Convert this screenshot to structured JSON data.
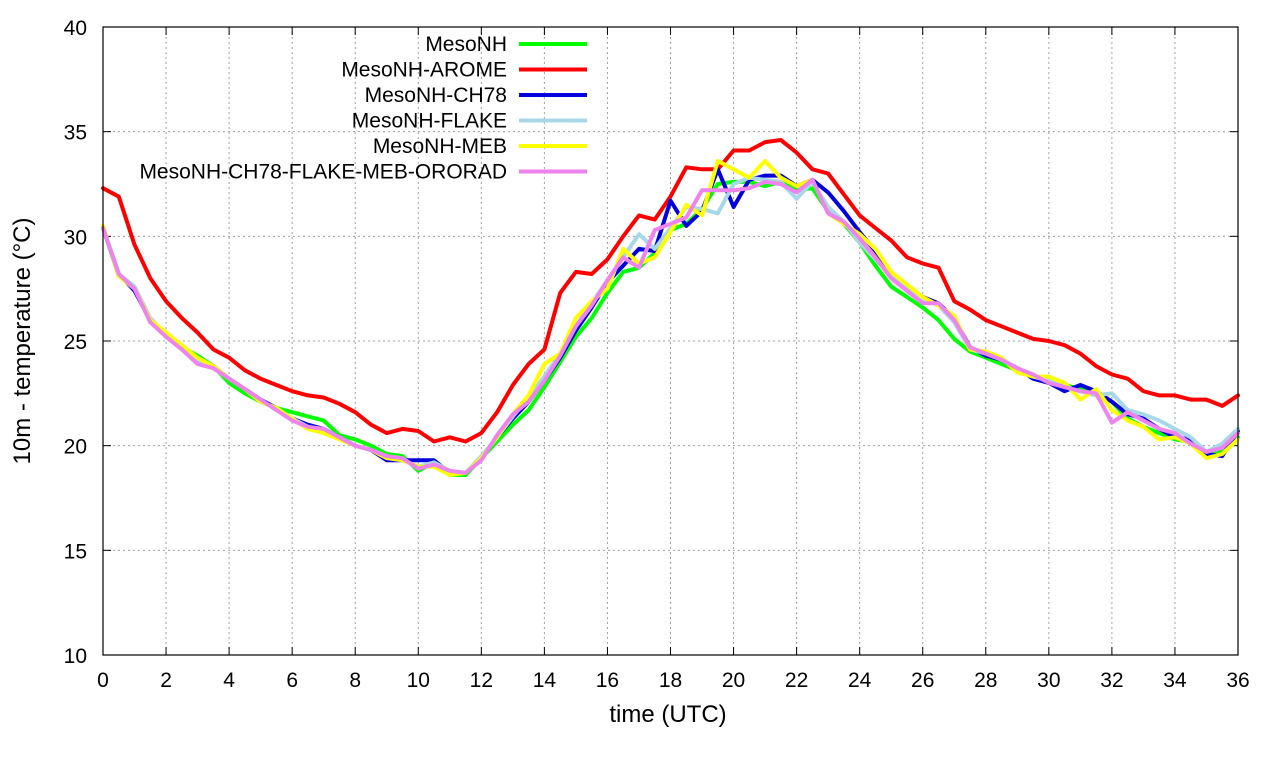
{
  "chart_data": {
    "type": "line",
    "title": "",
    "xlabel": "time (UTC)",
    "ylabel": "10m - temperature (°C)",
    "xlim": [
      0,
      36
    ],
    "ylim": [
      10,
      40
    ],
    "xticks": [
      "0",
      "2",
      "4",
      "6",
      "8",
      "10",
      "12",
      "14",
      "16",
      "18",
      "20",
      "22",
      "24",
      "26",
      "28",
      "30",
      "32",
      "34",
      "36"
    ],
    "yticks": [
      "10",
      "15",
      "20",
      "25",
      "30",
      "35",
      "40"
    ],
    "grid": true,
    "legend_position": "top-left",
    "x": [
      0,
      0.5,
      1,
      1.5,
      2,
      2.5,
      3,
      3.5,
      4,
      4.5,
      5,
      5.5,
      6,
      6.5,
      7,
      7.5,
      8,
      8.5,
      9,
      9.5,
      10,
      10.5,
      11,
      11.5,
      12,
      12.5,
      13,
      13.5,
      14,
      14.5,
      15,
      15.5,
      16,
      16.5,
      17,
      17.5,
      18,
      18.5,
      19,
      19.5,
      20,
      20.5,
      21,
      21.5,
      22,
      22.5,
      23,
      23.5,
      24,
      24.5,
      25,
      25.5,
      26,
      26.5,
      27,
      27.5,
      28,
      28.5,
      29,
      29.5,
      30,
      30.5,
      31,
      31.5,
      32,
      32.5,
      33,
      33.5,
      34,
      34.5,
      35,
      35.5,
      36
    ],
    "series": [
      {
        "name": "MesoNH",
        "color": "#00ff00",
        "values": [
          30.4,
          28.1,
          27.5,
          25.9,
          25.3,
          24.7,
          24.3,
          23.8,
          23.0,
          22.5,
          22.1,
          21.8,
          21.6,
          21.4,
          21.2,
          20.5,
          20.3,
          20.0,
          19.6,
          19.5,
          18.8,
          19.2,
          18.6,
          18.6,
          19.4,
          20.2,
          21.0,
          21.7,
          22.8,
          24.0,
          25.2,
          26.1,
          27.3,
          28.3,
          28.5,
          29.2,
          30.3,
          30.6,
          31.3,
          32.5,
          32.6,
          32.6,
          32.4,
          32.6,
          32.2,
          32.3,
          31.2,
          30.6,
          29.7,
          28.6,
          27.6,
          27.1,
          26.6,
          26.0,
          25.1,
          24.5,
          24.2,
          23.9,
          23.6,
          23.3,
          23.1,
          22.9,
          22.7,
          22.5,
          22.1,
          21.3,
          20.9,
          20.6,
          20.3,
          20.2,
          19.7,
          19.7,
          20.4
        ]
      },
      {
        "name": "MesoNH-AROME",
        "color": "#ff0000",
        "values": [
          32.3,
          31.9,
          29.6,
          28.0,
          26.9,
          26.1,
          25.4,
          24.6,
          24.2,
          23.6,
          23.2,
          22.9,
          22.6,
          22.4,
          22.3,
          22.0,
          21.6,
          21.0,
          20.6,
          20.8,
          20.7,
          20.2,
          20.4,
          20.2,
          20.6,
          21.6,
          22.9,
          23.9,
          24.6,
          27.3,
          28.3,
          28.2,
          28.9,
          30.0,
          31.0,
          30.8,
          31.9,
          33.3,
          33.2,
          33.2,
          34.1,
          34.1,
          34.5,
          34.6,
          34.0,
          33.2,
          33.0,
          32.0,
          31.0,
          30.4,
          29.8,
          29.0,
          28.7,
          28.5,
          26.9,
          26.5,
          26.0,
          25.7,
          25.4,
          25.1,
          25.0,
          24.8,
          24.4,
          23.8,
          23.4,
          23.2,
          22.6,
          22.4,
          22.4,
          22.2,
          22.2,
          21.9,
          22.4
        ]
      },
      {
        "name": "MesoNH-CH78",
        "color": "#0000dd",
        "values": [
          30.4,
          28.2,
          27.4,
          26.0,
          25.3,
          24.7,
          24.1,
          23.8,
          23.2,
          22.7,
          22.2,
          21.8,
          21.3,
          21.0,
          20.8,
          20.4,
          20.0,
          19.8,
          19.3,
          19.3,
          19.3,
          19.3,
          18.7,
          18.7,
          19.4,
          20.4,
          21.3,
          22.1,
          23.1,
          24.2,
          25.5,
          26.6,
          27.8,
          28.6,
          29.4,
          29.3,
          31.7,
          30.5,
          31.2,
          33.2,
          31.4,
          32.7,
          32.9,
          32.9,
          32.4,
          32.7,
          32.1,
          31.2,
          30.2,
          29.3,
          28.2,
          27.5,
          27.1,
          26.8,
          26.1,
          24.7,
          24.3,
          24.1,
          23.7,
          23.2,
          23.0,
          22.6,
          22.9,
          22.6,
          22.1,
          21.5,
          21.3,
          20.8,
          20.4,
          20.3,
          19.6,
          19.5,
          20.7
        ]
      },
      {
        "name": "MesoNH-FLAKE",
        "color": "#a8d8e8",
        "values": [
          30.4,
          28.2,
          27.6,
          26.1,
          25.3,
          24.6,
          24.0,
          23.7,
          23.2,
          22.7,
          22.1,
          21.8,
          21.3,
          20.9,
          20.7,
          20.4,
          20.0,
          19.8,
          19.5,
          19.3,
          19.0,
          19.2,
          18.8,
          18.7,
          19.5,
          20.4,
          21.4,
          22.3,
          23.3,
          24.4,
          25.7,
          26.8,
          27.9,
          29.0,
          30.1,
          29.4,
          30.4,
          31.4,
          31.3,
          31.1,
          32.5,
          32.8,
          32.7,
          32.6,
          31.8,
          32.6,
          31.4,
          30.7,
          29.7,
          28.9,
          28.1,
          27.5,
          27.0,
          26.7,
          25.9,
          24.6,
          24.4,
          24.1,
          23.7,
          23.3,
          23.1,
          22.8,
          22.6,
          22.4,
          22.5,
          21.7,
          21.5,
          21.2,
          20.8,
          20.4,
          19.7,
          20.1,
          20.8
        ]
      },
      {
        "name": "MesoNH-MEB",
        "color": "#ffff00",
        "values": [
          30.5,
          28.1,
          27.5,
          26.0,
          25.4,
          24.8,
          24.2,
          23.8,
          23.2,
          22.7,
          22.1,
          21.8,
          21.3,
          20.8,
          20.6,
          20.3,
          20.0,
          19.8,
          19.4,
          19.3,
          19.0,
          19.0,
          18.6,
          18.7,
          19.4,
          20.4,
          21.5,
          22.4,
          23.9,
          24.4,
          26.1,
          26.9,
          27.5,
          29.4,
          28.7,
          29.0,
          30.2,
          31.5,
          31.0,
          33.6,
          33.2,
          32.8,
          33.6,
          32.8,
          32.4,
          32.7,
          31.1,
          30.6,
          30.1,
          29.4,
          28.3,
          27.7,
          27.1,
          26.7,
          26.2,
          24.6,
          24.5,
          24.2,
          23.5,
          23.3,
          23.3,
          23.0,
          22.2,
          22.7,
          21.7,
          21.2,
          20.9,
          20.3,
          20.4,
          20.1,
          19.4,
          19.6,
          20.3
        ]
      },
      {
        "name": "MesoNH-CH78-FLAKE-MEB-ORORAD",
        "color": "#ee82ee",
        "values": [
          30.4,
          28.2,
          27.5,
          25.9,
          25.2,
          24.6,
          23.9,
          23.7,
          23.2,
          22.7,
          22.2,
          21.7,
          21.2,
          20.9,
          20.8,
          20.4,
          20.0,
          19.8,
          19.5,
          19.4,
          18.9,
          19.1,
          18.8,
          18.7,
          19.3,
          20.5,
          21.5,
          22.1,
          23.1,
          24.3,
          25.7,
          26.7,
          27.9,
          29.0,
          28.5,
          30.3,
          30.6,
          30.9,
          32.2,
          32.2,
          32.2,
          32.3,
          32.6,
          32.5,
          32.1,
          32.7,
          31.1,
          30.7,
          29.9,
          29.0,
          28.0,
          27.4,
          26.8,
          26.8,
          26.0,
          24.7,
          24.4,
          24.1,
          23.7,
          23.4,
          23.0,
          22.8,
          22.6,
          22.5,
          21.1,
          21.6,
          21.2,
          20.8,
          20.6,
          20.1,
          19.7,
          19.9,
          20.6
        ]
      }
    ]
  }
}
